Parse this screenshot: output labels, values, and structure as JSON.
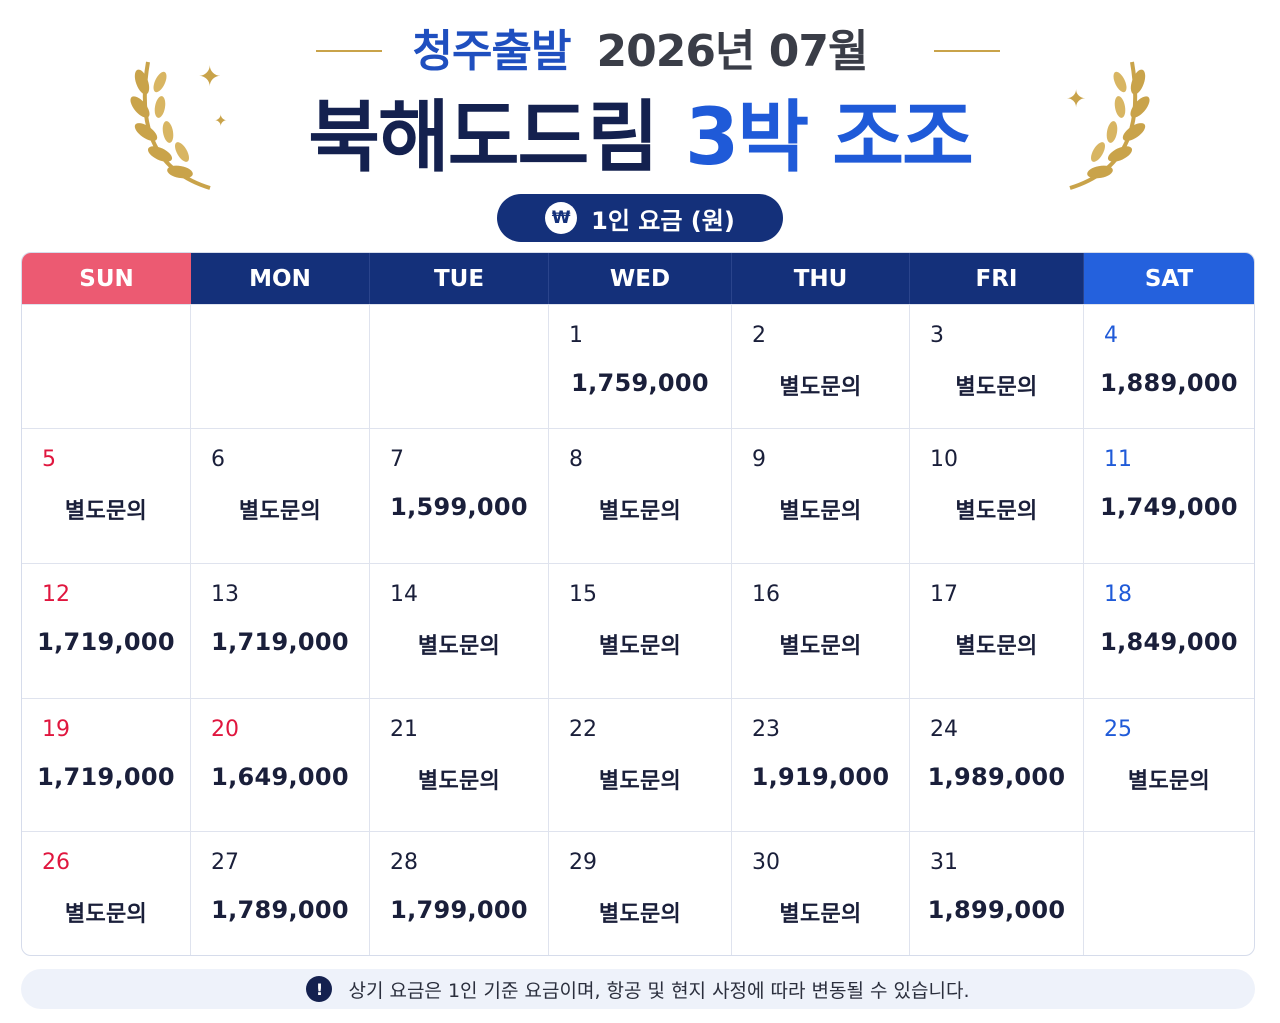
{
  "header": {
    "origin": "청주출발",
    "month": "2026년 07월",
    "title_main": "북해도드림",
    "title_accent": "3박 조조",
    "price_label": "1인 요금 (원)",
    "won_symbol": "₩",
    "icons": {
      "laurel": "laurel-wreath-icon",
      "sparkle": "sparkle-icon",
      "won": "won-currency-icon"
    }
  },
  "colors": {
    "gold": "#c9a34a",
    "navy": "#14307a",
    "blue_accent": "#1f5ad8",
    "sunday": "#ec5a72",
    "saturday": "#2461dd"
  },
  "calendar": {
    "weekdays": [
      "SUN",
      "MON",
      "TUE",
      "WED",
      "THU",
      "FRI",
      "SAT"
    ],
    "weeks": [
      [
        null,
        null,
        null,
        {
          "day": "1",
          "price": "1,759,000"
        },
        {
          "day": "2",
          "price": "별도문의"
        },
        {
          "day": "3",
          "price": "별도문의"
        },
        {
          "day": "4",
          "price": "1,889,000"
        }
      ],
      [
        {
          "day": "5",
          "price": "별도문의"
        },
        {
          "day": "6",
          "price": "별도문의"
        },
        {
          "day": "7",
          "price": "1,599,000"
        },
        {
          "day": "8",
          "price": "별도문의"
        },
        {
          "day": "9",
          "price": "별도문의"
        },
        {
          "day": "10",
          "price": "별도문의"
        },
        {
          "day": "11",
          "price": "1,749,000"
        }
      ],
      [
        {
          "day": "12",
          "price": "1,719,000"
        },
        {
          "day": "13",
          "price": "1,719,000"
        },
        {
          "day": "14",
          "price": "별도문의"
        },
        {
          "day": "15",
          "price": "별도문의"
        },
        {
          "day": "16",
          "price": "별도문의"
        },
        {
          "day": "17",
          "price": "별도문의"
        },
        {
          "day": "18",
          "price": "1,849,000"
        }
      ],
      [
        {
          "day": "19",
          "price": "1,719,000"
        },
        {
          "day": "20",
          "price": "1,649,000",
          "holiday": true
        },
        {
          "day": "21",
          "price": "별도문의"
        },
        {
          "day": "22",
          "price": "별도문의"
        },
        {
          "day": "23",
          "price": "1,919,000"
        },
        {
          "day": "24",
          "price": "1,989,000"
        },
        {
          "day": "25",
          "price": "별도문의"
        }
      ],
      [
        {
          "day": "26",
          "price": "별도문의"
        },
        {
          "day": "27",
          "price": "1,789,000"
        },
        {
          "day": "28",
          "price": "1,799,000"
        },
        {
          "day": "29",
          "price": "별도문의"
        },
        {
          "day": "30",
          "price": "별도문의"
        },
        {
          "day": "31",
          "price": "1,899,000"
        },
        null
      ]
    ]
  },
  "notice": {
    "icon": "exclamation-icon",
    "icon_glyph": "!",
    "text": "상기 요금은 1인 기준 요금이며, 항공 및 현지 사정에 따라 변동될 수 있습니다."
  }
}
